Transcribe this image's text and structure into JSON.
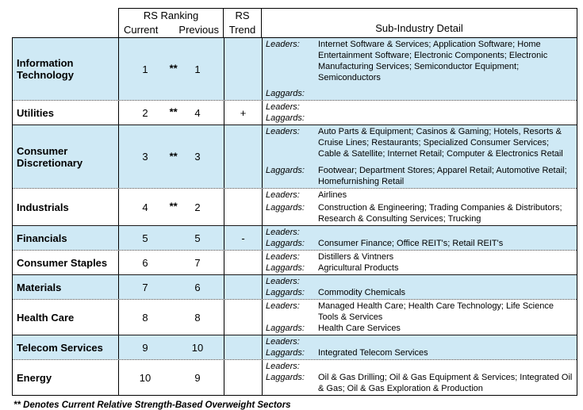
{
  "header": {
    "rs_ranking": "RS Ranking",
    "current": "Current",
    "previous": "Previous",
    "rs_trend_line1": "RS",
    "rs_trend_line2": "Trend",
    "sub_industry": "Sub-Industry Detail"
  },
  "labels": {
    "leaders": "Leaders:",
    "laggards": "Laggards:"
  },
  "footnote": "** Denotes Current Relative Strength-Based Overweight Sectors",
  "colors": {
    "row_highlight": "#cfe9f5",
    "border": "#000000"
  },
  "rows": [
    {
      "sector": "Information Technology",
      "current": "1",
      "overweight": "**",
      "previous": "1",
      "trend": "",
      "leaders": "Internet Software & Services; Application Software; Home Entertainment Software; Electronic Components; Electronic Manufacturing Services; Semiconductor Equipment; Semiconductors",
      "laggards": ""
    },
    {
      "sector": "Utilities",
      "current": "2",
      "overweight": "**",
      "previous": "4",
      "trend": "+",
      "leaders": "",
      "laggards": ""
    },
    {
      "sector": "Consumer Discretionary",
      "current": "3",
      "overweight": "**",
      "previous": "3",
      "trend": "",
      "leaders": "Auto Parts & Equipment; Casinos & Gaming; Hotels, Resorts & Cruise Lines; Restaurants; Specialized Consumer Services; Cable & Satellite; Internet Retail; Computer & Electronics Retail",
      "laggards": "Footwear; Department Stores; Apparel Retail; Automotive Retail; Homefurnishing Retail"
    },
    {
      "sector": "Industrials",
      "current": "4",
      "overweight": "**",
      "previous": "2",
      "trend": "",
      "leaders": "Airlines",
      "laggards": "Construction & Engineering; Trading Companies & Distributors; Research & Consulting Services; Trucking"
    },
    {
      "sector": "Financials",
      "current": "5",
      "overweight": "",
      "previous": "5",
      "trend": "-",
      "leaders": "",
      "laggards": "Consumer Finance; Office REIT's; Retail REIT's"
    },
    {
      "sector": "Consumer Staples",
      "current": "6",
      "overweight": "",
      "previous": "7",
      "trend": "",
      "leaders": "Distillers & Vintners",
      "laggards": "Agricultural Products"
    },
    {
      "sector": "Materials",
      "current": "7",
      "overweight": "",
      "previous": "6",
      "trend": "",
      "leaders": "",
      "laggards": "Commodity Chemicals"
    },
    {
      "sector": "Health Care",
      "current": "8",
      "overweight": "",
      "previous": "8",
      "trend": "",
      "leaders": "Managed Health Care; Health Care Technology; Life Science Tools & Services",
      "laggards": "Health Care Services"
    },
    {
      "sector": "Telecom Services",
      "current": "9",
      "overweight": "",
      "previous": "10",
      "trend": "",
      "leaders": "",
      "laggards": "Integrated Telecom Services"
    },
    {
      "sector": "Energy",
      "current": "10",
      "overweight": "",
      "previous": "9",
      "trend": "",
      "leaders": "",
      "laggards": "Oil & Gas Drilling; Oil & Gas Equipment & Services; Integrated Oil & Gas; Oil & Gas Exploration & Production"
    }
  ]
}
